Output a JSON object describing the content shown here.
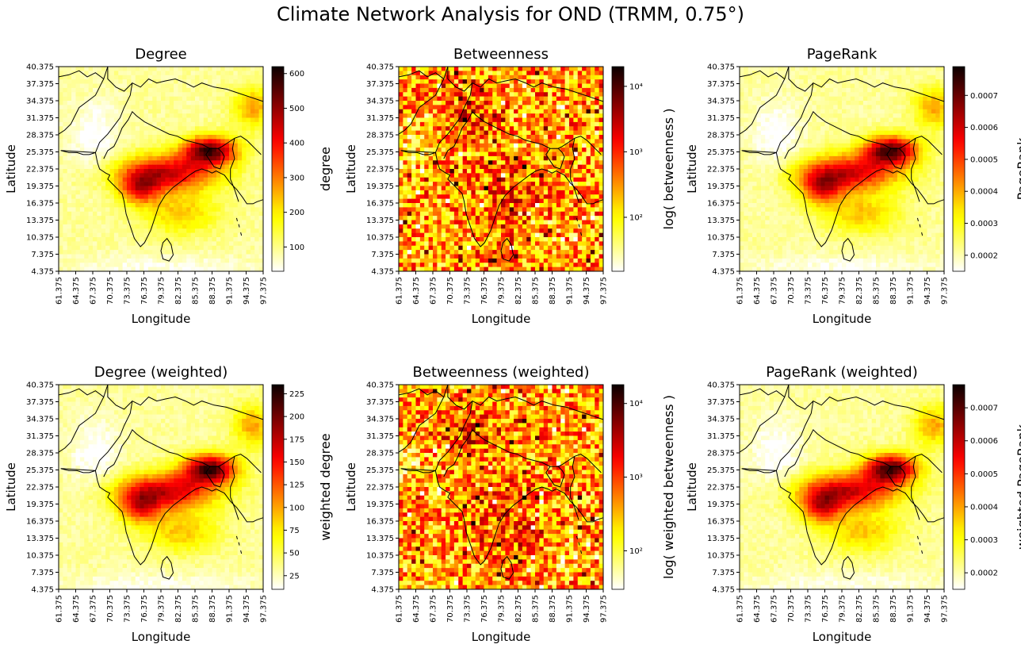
{
  "title": "Climate Network Analysis for OND (TRMM, 0.75°)",
  "chart_data": [
    {
      "type": "heatmap",
      "title": "Degree",
      "xlabel": "Longitude",
      "ylabel": "Latitude",
      "colorbar_label": "degree",
      "colorbar_scale": "linear",
      "colorbar_range": [
        30,
        620
      ],
      "colorbar_ticks": [
        "100",
        "200",
        "300",
        "400",
        "500",
        "600"
      ],
      "colorbar_tick_values": [
        100,
        200,
        300,
        400,
        500,
        600
      ],
      "field": "degree",
      "seed": 11,
      "x_ticks": [
        "61.375",
        "64.375",
        "67.375",
        "70.375",
        "73.375",
        "76.375",
        "79.375",
        "82.375",
        "85.375",
        "88.375",
        "91.375",
        "94.375",
        "97.375"
      ],
      "y_ticks": [
        "40.375",
        "37.375",
        "34.375",
        "31.375",
        "28.375",
        "25.375",
        "22.375",
        "19.375",
        "16.375",
        "13.375",
        "10.375",
        "7.375",
        "4.375"
      ]
    },
    {
      "type": "heatmap",
      "title": "Betweenness",
      "xlabel": "Longitude",
      "ylabel": "Latitude",
      "colorbar_label": "log( betweenness )",
      "colorbar_scale": "log",
      "colorbar_range": [
        15,
        20000
      ],
      "colorbar_ticks": [
        "10²",
        "10³",
        "10⁴"
      ],
      "colorbar_tick_values": [
        100,
        1000,
        10000
      ],
      "field": "betweenness",
      "seed": 23,
      "x_ticks": [
        "61.375",
        "64.375",
        "67.375",
        "70.375",
        "73.375",
        "76.375",
        "79.375",
        "82.375",
        "85.375",
        "88.375",
        "91.375",
        "94.375",
        "97.375"
      ],
      "y_ticks": [
        "40.375",
        "37.375",
        "34.375",
        "31.375",
        "28.375",
        "25.375",
        "22.375",
        "19.375",
        "16.375",
        "13.375",
        "10.375",
        "7.375",
        "4.375"
      ]
    },
    {
      "type": "heatmap",
      "title": "PageRank",
      "xlabel": "Longitude",
      "ylabel": "Latitude",
      "colorbar_label": "PageRank",
      "colorbar_scale": "linear",
      "colorbar_range": [
        0.00015,
        0.00079
      ],
      "colorbar_ticks": [
        "0.0002",
        "0.0003",
        "0.0004",
        "0.0005",
        "0.0006",
        "0.0007"
      ],
      "colorbar_tick_values": [
        0.0002,
        0.0003,
        0.0004,
        0.0005,
        0.0006,
        0.0007
      ],
      "field": "degree",
      "seed": 37,
      "x_ticks": [
        "61.375",
        "64.375",
        "67.375",
        "70.375",
        "73.375",
        "76.375",
        "79.375",
        "82.375",
        "85.375",
        "88.375",
        "91.375",
        "94.375",
        "97.375"
      ],
      "y_ticks": [
        "40.375",
        "37.375",
        "34.375",
        "31.375",
        "28.375",
        "25.375",
        "22.375",
        "19.375",
        "16.375",
        "13.375",
        "10.375",
        "7.375",
        "4.375"
      ]
    },
    {
      "type": "heatmap",
      "title": "Degree (weighted)",
      "xlabel": "Longitude",
      "ylabel": "Latitude",
      "colorbar_label": "weighted degree",
      "colorbar_scale": "linear",
      "colorbar_range": [
        10,
        235
      ],
      "colorbar_ticks": [
        "25",
        "50",
        "75",
        "100",
        "125",
        "150",
        "175",
        "200",
        "225"
      ],
      "colorbar_tick_values": [
        25,
        50,
        75,
        100,
        125,
        150,
        175,
        200,
        225
      ],
      "field": "degree",
      "seed": 41,
      "x_ticks": [
        "61.375",
        "64.375",
        "67.375",
        "70.375",
        "73.375",
        "76.375",
        "79.375",
        "82.375",
        "85.375",
        "88.375",
        "91.375",
        "94.375",
        "97.375"
      ],
      "y_ticks": [
        "40.375",
        "37.375",
        "34.375",
        "31.375",
        "28.375",
        "25.375",
        "22.375",
        "19.375",
        "16.375",
        "13.375",
        "10.375",
        "7.375",
        "4.375"
      ]
    },
    {
      "type": "heatmap",
      "title": "Betweenness (weighted)",
      "xlabel": "Longitude",
      "ylabel": "Latitude",
      "colorbar_label": "log( weighted betweenness )",
      "colorbar_scale": "log",
      "colorbar_range": [
        30,
        18000
      ],
      "colorbar_ticks": [
        "10²",
        "10³",
        "10⁴"
      ],
      "colorbar_tick_values": [
        100,
        1000,
        10000
      ],
      "field": "betweenness",
      "seed": 53,
      "x_ticks": [
        "61.375",
        "64.375",
        "67.375",
        "70.375",
        "73.375",
        "76.375",
        "79.375",
        "82.375",
        "85.375",
        "88.375",
        "91.375",
        "94.375",
        "97.375"
      ],
      "y_ticks": [
        "40.375",
        "37.375",
        "34.375",
        "31.375",
        "28.375",
        "25.375",
        "22.375",
        "19.375",
        "16.375",
        "13.375",
        "10.375",
        "7.375",
        "4.375"
      ]
    },
    {
      "type": "heatmap",
      "title": "PageRank (weighted)",
      "xlabel": "Longitude",
      "ylabel": "Latitude",
      "colorbar_label": "weighted PageRank",
      "colorbar_scale": "linear",
      "colorbar_range": [
        0.00015,
        0.00077
      ],
      "colorbar_ticks": [
        "0.0002",
        "0.0003",
        "0.0004",
        "0.0005",
        "0.0006",
        "0.0007"
      ],
      "colorbar_tick_values": [
        0.0002,
        0.0003,
        0.0004,
        0.0005,
        0.0006,
        0.0007
      ],
      "field": "degree",
      "seed": 67,
      "x_ticks": [
        "61.375",
        "64.375",
        "67.375",
        "70.375",
        "73.375",
        "76.375",
        "79.375",
        "82.375",
        "85.375",
        "88.375",
        "91.375",
        "94.375",
        "97.375"
      ],
      "y_ticks": [
        "40.375",
        "37.375",
        "34.375",
        "31.375",
        "28.375",
        "25.375",
        "22.375",
        "19.375",
        "16.375",
        "13.375",
        "10.375",
        "7.375",
        "4.375"
      ]
    }
  ],
  "colormap": "hot_r"
}
